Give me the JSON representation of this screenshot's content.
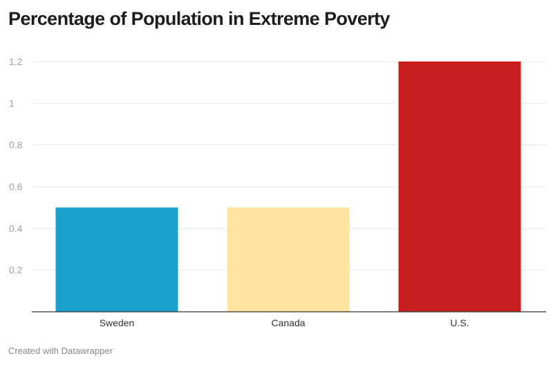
{
  "chart_data": {
    "type": "bar",
    "title": "Percentage of Population in Extreme Poverty",
    "categories": [
      "Sweden",
      "Canada",
      "U.S."
    ],
    "values": [
      0.5,
      0.5,
      1.2
    ],
    "colors": [
      "#18a1cd",
      "#fde49e",
      "#c71e1d"
    ],
    "xlabel": "",
    "ylabel": "",
    "ylim": [
      0,
      1.2
    ],
    "yticks": [
      "0.2",
      "0.4",
      "0.6",
      "0.8",
      "1",
      "1.2"
    ],
    "grid": true
  },
  "footer": {
    "credit": "Created with Datawrapper"
  }
}
